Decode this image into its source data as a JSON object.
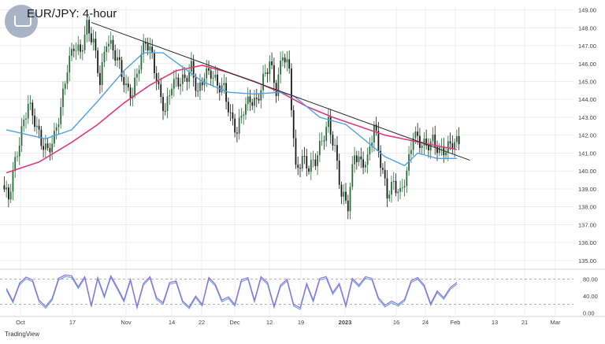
{
  "title": "EUR/JPY: 4-hour",
  "watermark": "TradingView",
  "colors": {
    "candle_up": "#2b6e3a",
    "candle_down": "#1a1a1a",
    "ma_fast": "#4ea1e8",
    "ma_slow": "#e03a7a",
    "trendline": "#2a2a2a",
    "rsi_line": "#9b6cd6",
    "rsi_signal": "#5aa6ee",
    "grid": "#ececec",
    "axis_text": "#444444"
  },
  "chart_data": [
    {
      "type": "candlestick",
      "name": "price",
      "x_ticks": [
        "Oct",
        "17",
        "Nov",
        "14",
        "22",
        "Dec",
        "12",
        "19",
        "2023",
        "16",
        "24",
        "Feb",
        "13",
        "21",
        "Mar"
      ],
      "y_ticks": [
        135.0,
        136.0,
        137.0,
        138.0,
        139.0,
        140.0,
        141.0,
        142.0,
        143.0,
        144.0,
        145.0,
        146.0,
        147.0,
        148.0,
        149.0
      ],
      "ylim": [
        134.6,
        149.2
      ],
      "grid": true,
      "close_path": [
        [
          0,
          139.2
        ],
        [
          1,
          138.5
        ],
        [
          2,
          140.5
        ],
        [
          3,
          142.2
        ],
        [
          4,
          143.8
        ],
        [
          5,
          142.8
        ],
        [
          6,
          141.6
        ],
        [
          7,
          141.1
        ],
        [
          8,
          141.9
        ],
        [
          9,
          143.5
        ],
        [
          10,
          145.8
        ],
        [
          11,
          147.0
        ],
        [
          12,
          146.6
        ],
        [
          13,
          148.1
        ],
        [
          14,
          147.2
        ],
        [
          15,
          145.0
        ],
        [
          16,
          147.3
        ],
        [
          17,
          146.8
        ],
        [
          18,
          145.9
        ],
        [
          19,
          144.6
        ],
        [
          20,
          144.3
        ],
        [
          21,
          146.0
        ],
        [
          22,
          147.3
        ],
        [
          23,
          146.4
        ],
        [
          24,
          144.5
        ],
        [
          25,
          143.3
        ],
        [
          26,
          144.9
        ],
        [
          27,
          145.0
        ],
        [
          28,
          145.1
        ],
        [
          29,
          145.8
        ],
        [
          30,
          144.3
        ],
        [
          31,
          145.4
        ],
        [
          32,
          145.5
        ],
        [
          33,
          144.8
        ],
        [
          34,
          144.6
        ],
        [
          35,
          143.0
        ],
        [
          36,
          142.2
        ],
        [
          37,
          143.5
        ],
        [
          38,
          144.0
        ],
        [
          39,
          143.8
        ],
        [
          40,
          145.1
        ],
        [
          41,
          146.1
        ],
        [
          42,
          144.5
        ],
        [
          43,
          146.6
        ],
        [
          44,
          145.6
        ],
        [
          45,
          140.0
        ],
        [
          46,
          140.7
        ],
        [
          47,
          140.2
        ],
        [
          48,
          140.6
        ],
        [
          49,
          141.7
        ],
        [
          50,
          142.7
        ],
        [
          51,
          141.2
        ],
        [
          52,
          138.7
        ],
        [
          53,
          138.1
        ],
        [
          54,
          141.0
        ],
        [
          55,
          140.4
        ],
        [
          56,
          140.6
        ],
        [
          57,
          142.6
        ],
        [
          58,
          140.5
        ],
        [
          59,
          138.7
        ],
        [
          60,
          139.3
        ],
        [
          61,
          138.7
        ],
        [
          62,
          139.9
        ],
        [
          63,
          142.1
        ],
        [
          64,
          141.6
        ],
        [
          65,
          141.4
        ],
        [
          66,
          141.7
        ],
        [
          67,
          141.1
        ],
        [
          68,
          141.2
        ],
        [
          69,
          141.6
        ]
      ],
      "ma_fast": [
        [
          0,
          142.3
        ],
        [
          6,
          141.8
        ],
        [
          10,
          142.3
        ],
        [
          14,
          143.9
        ],
        [
          18,
          145.6
        ],
        [
          21,
          146.6
        ],
        [
          24,
          146.6
        ],
        [
          27,
          145.8
        ],
        [
          30,
          145.0
        ],
        [
          34,
          144.4
        ],
        [
          38,
          144.3
        ],
        [
          42,
          144.4
        ],
        [
          44,
          144.2
        ],
        [
          46,
          143.6
        ],
        [
          48,
          143.0
        ],
        [
          52,
          142.6
        ],
        [
          55,
          141.7
        ],
        [
          58,
          140.8
        ],
        [
          61,
          140.3
        ],
        [
          63,
          141.0
        ],
        [
          66,
          140.7
        ],
        [
          69,
          140.7
        ]
      ],
      "ma_slow": [
        [
          0,
          139.9
        ],
        [
          5,
          140.5
        ],
        [
          10,
          141.6
        ],
        [
          14,
          142.6
        ],
        [
          18,
          143.8
        ],
        [
          22,
          144.8
        ],
        [
          26,
          145.6
        ],
        [
          30,
          145.9
        ],
        [
          34,
          145.5
        ],
        [
          38,
          145.0
        ],
        [
          42,
          144.4
        ],
        [
          46,
          143.6
        ],
        [
          50,
          143.0
        ],
        [
          54,
          142.5
        ],
        [
          58,
          142.0
        ],
        [
          62,
          141.7
        ],
        [
          66,
          141.4
        ],
        [
          69,
          141.2
        ]
      ],
      "trendline": [
        [
          13,
          148.3
        ],
        [
          71,
          140.6
        ]
      ]
    },
    {
      "type": "line",
      "name": "rsi",
      "y_ticks": [
        0.0,
        40.0,
        80.0
      ],
      "ylim": [
        -5,
        100
      ],
      "levels": [
        80,
        20
      ],
      "grid": true,
      "values": [
        [
          0,
          58
        ],
        [
          1,
          28
        ],
        [
          2,
          70
        ],
        [
          3,
          85
        ],
        [
          4,
          78
        ],
        [
          5,
          30
        ],
        [
          6,
          15
        ],
        [
          7,
          34
        ],
        [
          8,
          82
        ],
        [
          9,
          90
        ],
        [
          10,
          88
        ],
        [
          11,
          62
        ],
        [
          12,
          86
        ],
        [
          13,
          18
        ],
        [
          14,
          84
        ],
        [
          15,
          40
        ],
        [
          16,
          88
        ],
        [
          17,
          60
        ],
        [
          18,
          30
        ],
        [
          19,
          80
        ],
        [
          20,
          15
        ],
        [
          21,
          70
        ],
        [
          22,
          86
        ],
        [
          23,
          36
        ],
        [
          24,
          24
        ],
        [
          25,
          72
        ],
        [
          26,
          76
        ],
        [
          27,
          28
        ],
        [
          28,
          14
        ],
        [
          29,
          40
        ],
        [
          30,
          20
        ],
        [
          31,
          84
        ],
        [
          32,
          68
        ],
        [
          33,
          30
        ],
        [
          34,
          38
        ],
        [
          35,
          20
        ],
        [
          36,
          78
        ],
        [
          37,
          84
        ],
        [
          38,
          30
        ],
        [
          39,
          86
        ],
        [
          40,
          72
        ],
        [
          41,
          16
        ],
        [
          42,
          66
        ],
        [
          43,
          80
        ],
        [
          44,
          20
        ],
        [
          45,
          12
        ],
        [
          46,
          70
        ],
        [
          47,
          30
        ],
        [
          48,
          82
        ],
        [
          49,
          86
        ],
        [
          50,
          48
        ],
        [
          51,
          70
        ],
        [
          52,
          18
        ],
        [
          53,
          82
        ],
        [
          54,
          66
        ],
        [
          55,
          86
        ],
        [
          56,
          82
        ],
        [
          57,
          36
        ],
        [
          58,
          18
        ],
        [
          59,
          28
        ],
        [
          60,
          20
        ],
        [
          61,
          32
        ],
        [
          62,
          76
        ],
        [
          63,
          84
        ],
        [
          64,
          66
        ],
        [
          65,
          22
        ],
        [
          66,
          52
        ],
        [
          67,
          36
        ],
        [
          68,
          60
        ],
        [
          69,
          72
        ]
      ]
    }
  ]
}
